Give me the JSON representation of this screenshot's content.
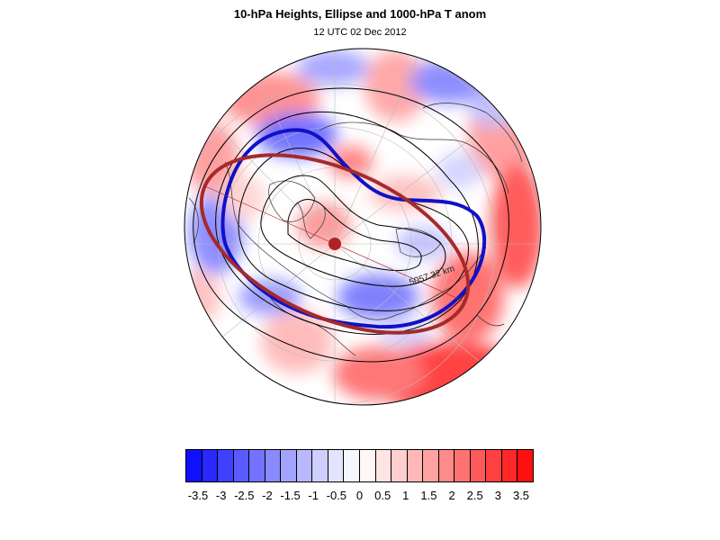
{
  "figure": {
    "title": "10-hPa Heights, Ellipse and 1000-hPa T anom",
    "subtitle": "12 UTC 02 Dec 2012"
  },
  "map": {
    "projection": "polar-stereographic-north",
    "field": "1000-hPa temperature anomaly",
    "overlays": [
      "10-hPa height contours",
      "vortex edge contour",
      "fitted ellipse",
      "ellipse centroid"
    ],
    "ellipse_label": "5057.32 km",
    "colors": {
      "vortex_edge": "#1010c8",
      "ellipse": "#a52a2a",
      "height_contours": "#000000",
      "coastlines": "#333333",
      "graticule": "#bbbbbb"
    }
  },
  "colorbar": {
    "colors": [
      "#1010ff",
      "#2828ff",
      "#4040ff",
      "#5a5aff",
      "#7272ff",
      "#8a8aff",
      "#a2a2ff",
      "#b8b8ff",
      "#ceceff",
      "#e4e4ff",
      "#f6f6ff",
      "#fff6f6",
      "#ffe4e4",
      "#ffcece",
      "#ffb8b8",
      "#ffa2a2",
      "#ff8a8a",
      "#ff7272",
      "#ff5a5a",
      "#ff4040",
      "#ff2828",
      "#ff1010"
    ],
    "labels": [
      "-3.5",
      "-3",
      "-2.5",
      "-2",
      "-1.5",
      "-1",
      "-0.5",
      "0",
      "0.5",
      "1",
      "1.5",
      "2",
      "2.5",
      "3",
      "3.5"
    ]
  }
}
